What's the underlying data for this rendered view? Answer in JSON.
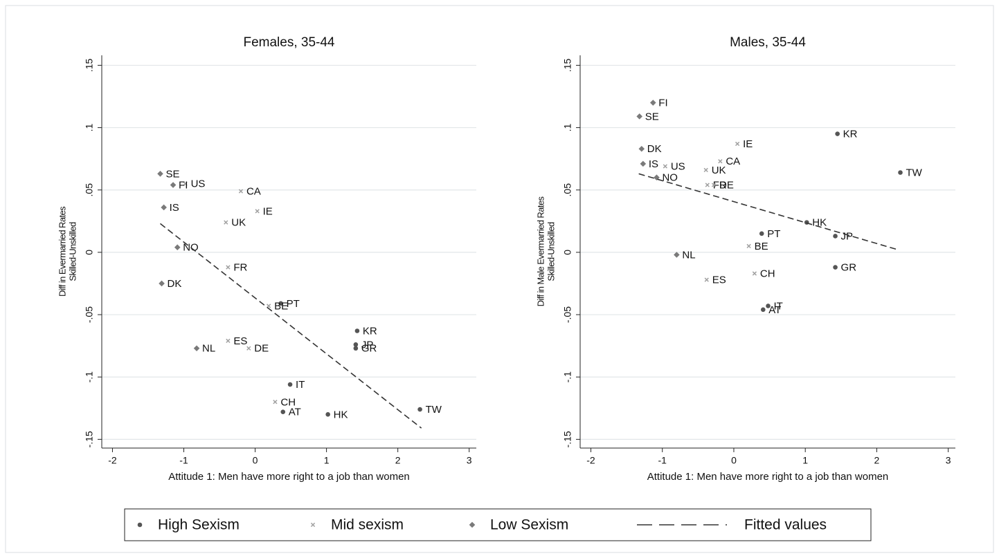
{
  "chart_data": [
    {
      "type": "scatter",
      "title": "Females, 35-44",
      "xlabel": "Attitude 1: Men have more right to a job than women",
      "ylabel": [
        "Diff in Evermarried Rates",
        "Skilled-Unskilled"
      ],
      "xlim": [
        -2.15,
        3.1
      ],
      "ylim": [
        -0.157,
        0.158
      ],
      "xticks": [
        -2,
        -1,
        0,
        1,
        2,
        3
      ],
      "yticks": [
        {
          "value": -0.15,
          "label": "-.15"
        },
        {
          "value": -0.1,
          "label": "-.1"
        },
        {
          "value": -0.05,
          "label": "-.05"
        },
        0,
        {
          "value": 0.05,
          "label": ".05"
        },
        {
          "value": 0.1,
          "label": ".1"
        },
        {
          "value": 0.15,
          "label": ".15"
        }
      ],
      "grid": true,
      "series": [
        {
          "name": "High Sexism",
          "marker": "circle",
          "color": "#555555",
          "labels": [
            "PT",
            "IT",
            "AT",
            "HK",
            "KR",
            "JP",
            "GR",
            "TW"
          ],
          "x": [
            0.36,
            0.49,
            0.39,
            1.02,
            1.43,
            1.41,
            1.41,
            2.31
          ],
          "values": [
            -0.041,
            -0.106,
            -0.128,
            -0.13,
            -0.063,
            -0.074,
            -0.077,
            -0.126
          ]
        },
        {
          "name": "Mid sexism",
          "marker": "x",
          "color": "#a0a0a0",
          "labels": [
            "US",
            "CA",
            "IE",
            "UK",
            "FR",
            "BE",
            "ES",
            "DE",
            "CH"
          ],
          "x": [
            -0.98,
            -0.2,
            0.03,
            -0.41,
            -0.38,
            0.19,
            -0.38,
            -0.09,
            0.28
          ],
          "values": [
            0.055,
            0.049,
            0.033,
            0.024,
            -0.012,
            -0.043,
            -0.071,
            -0.077,
            -0.12
          ]
        },
        {
          "name": "Low Sexism",
          "marker": "diamond",
          "color": "#7a7a7a",
          "labels": [
            "SE",
            "FI",
            "IS",
            "NO",
            "DK",
            "NL"
          ],
          "x": [
            -1.33,
            -1.15,
            -1.28,
            -1.09,
            -1.31,
            -0.82
          ],
          "values": [
            0.063,
            0.054,
            0.036,
            0.004,
            -0.025,
            -0.077
          ]
        },
        {
          "name": "Fitted values",
          "marker": "dash",
          "color": "#333333",
          "x": [
            -1.33,
            2.33
          ],
          "values": [
            0.023,
            -0.141
          ]
        }
      ]
    },
    {
      "type": "scatter",
      "title": "Males, 35-44",
      "xlabel": "Attitude 1: Men have more right to a job than women",
      "ylabel": [
        "Diff in Male Evermarried Rates",
        "Skilled-Unskilled"
      ],
      "xlim": [
        -2.15,
        3.1
      ],
      "ylim": [
        -0.157,
        0.158
      ],
      "xticks": [
        -2,
        -1,
        0,
        1,
        2,
        3
      ],
      "yticks": [
        {
          "value": -0.15,
          "label": "-.15"
        },
        {
          "value": -0.1,
          "label": "-.1"
        },
        {
          "value": -0.05,
          "label": "-.05"
        },
        0,
        {
          "value": 0.05,
          "label": ".05"
        },
        {
          "value": 0.1,
          "label": ".1"
        },
        {
          "value": 0.15,
          "label": ".15"
        }
      ],
      "grid": true,
      "series": [
        {
          "name": "High Sexism",
          "marker": "circle",
          "color": "#555555",
          "labels": [
            "KR",
            "TW",
            "HK",
            "PT",
            "JP",
            "GR",
            "IT",
            "AT"
          ],
          "x": [
            1.45,
            2.33,
            1.02,
            0.39,
            1.42,
            1.42,
            0.48,
            0.41
          ],
          "values": [
            0.095,
            0.064,
            0.024,
            0.015,
            0.013,
            -0.012,
            -0.043,
            -0.046
          ]
        },
        {
          "name": "Mid sexism",
          "marker": "x",
          "color": "#a0a0a0",
          "labels": [
            "US",
            "IE",
            "CA",
            "UK",
            "FR",
            "DE",
            "BE",
            "ES",
            "CH"
          ],
          "x": [
            -0.96,
            0.05,
            -0.19,
            -0.39,
            -0.37,
            -0.28,
            0.21,
            -0.38,
            0.29
          ],
          "values": [
            0.069,
            0.087,
            0.073,
            0.066,
            0.054,
            0.054,
            0.005,
            -0.022,
            -0.017
          ]
        },
        {
          "name": "Low Sexism",
          "marker": "diamond",
          "color": "#7a7a7a",
          "labels": [
            "FI",
            "SE",
            "DK",
            "IS",
            "NO",
            "NL"
          ],
          "x": [
            -1.13,
            -1.32,
            -1.29,
            -1.27,
            -1.08,
            -0.8
          ],
          "values": [
            0.12,
            0.109,
            0.083,
            0.071,
            0.06,
            -0.002
          ]
        },
        {
          "name": "Fitted values",
          "marker": "dash",
          "color": "#333333",
          "x": [
            -1.33,
            2.3
          ],
          "values": [
            0.063,
            0.002
          ]
        }
      ]
    }
  ]
}
